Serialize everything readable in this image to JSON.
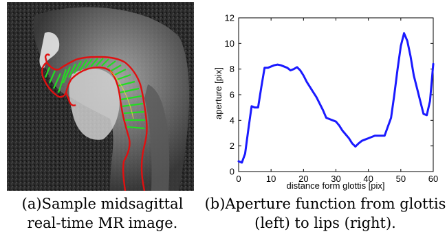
{
  "figure_a": {
    "caption_line1": "(a)Sample midsagittal",
    "caption_line2": "real-time MR image."
  },
  "figure_b": {
    "caption_line1": "(b)Aperture function from glottis",
    "caption_line2": "(left) to lips (right)."
  },
  "chart_data": {
    "type": "line",
    "title": "",
    "xlabel": "distance form glottis [pix]",
    "ylabel": "aperture [pix]",
    "xlim": [
      0,
      60
    ],
    "ylim": [
      0,
      12
    ],
    "xticks": [
      0,
      10,
      20,
      30,
      40,
      50,
      60
    ],
    "yticks": [
      0,
      2,
      4,
      6,
      8,
      10,
      12
    ],
    "grid": false,
    "series": [
      {
        "color": "#1a1aff",
        "x": [
          0,
          1,
          2,
          3,
          4,
          5,
          6,
          7,
          8,
          9,
          10,
          11,
          12,
          13,
          14,
          15,
          16,
          17,
          18,
          19,
          20,
          21,
          22,
          23,
          24,
          25,
          26,
          27,
          28,
          29,
          30,
          31,
          32,
          33,
          34,
          35,
          36,
          37,
          38,
          39,
          40,
          41,
          42,
          43,
          44,
          45,
          46,
          47,
          48,
          49,
          50,
          51,
          52,
          53,
          54,
          55,
          56,
          57,
          58,
          59,
          60
        ],
        "y": [
          0.8,
          0.7,
          1.4,
          3.3,
          5.1,
          5.0,
          5.0,
          6.6,
          8.1,
          8.1,
          8.2,
          8.3,
          8.35,
          8.3,
          8.2,
          8.1,
          7.9,
          8.0,
          8.15,
          7.9,
          7.5,
          7.0,
          6.6,
          6.2,
          5.8,
          5.3,
          4.8,
          4.2,
          4.1,
          4.0,
          3.9,
          3.6,
          3.2,
          2.9,
          2.6,
          2.2,
          1.95,
          2.2,
          2.4,
          2.5,
          2.6,
          2.7,
          2.8,
          2.8,
          2.8,
          2.8,
          3.5,
          4.2,
          6.0,
          8.0,
          9.8,
          10.8,
          10.2,
          9.0,
          7.5,
          6.5,
          5.5,
          4.5,
          4.4,
          5.5,
          8.4
        ]
      }
    ]
  }
}
